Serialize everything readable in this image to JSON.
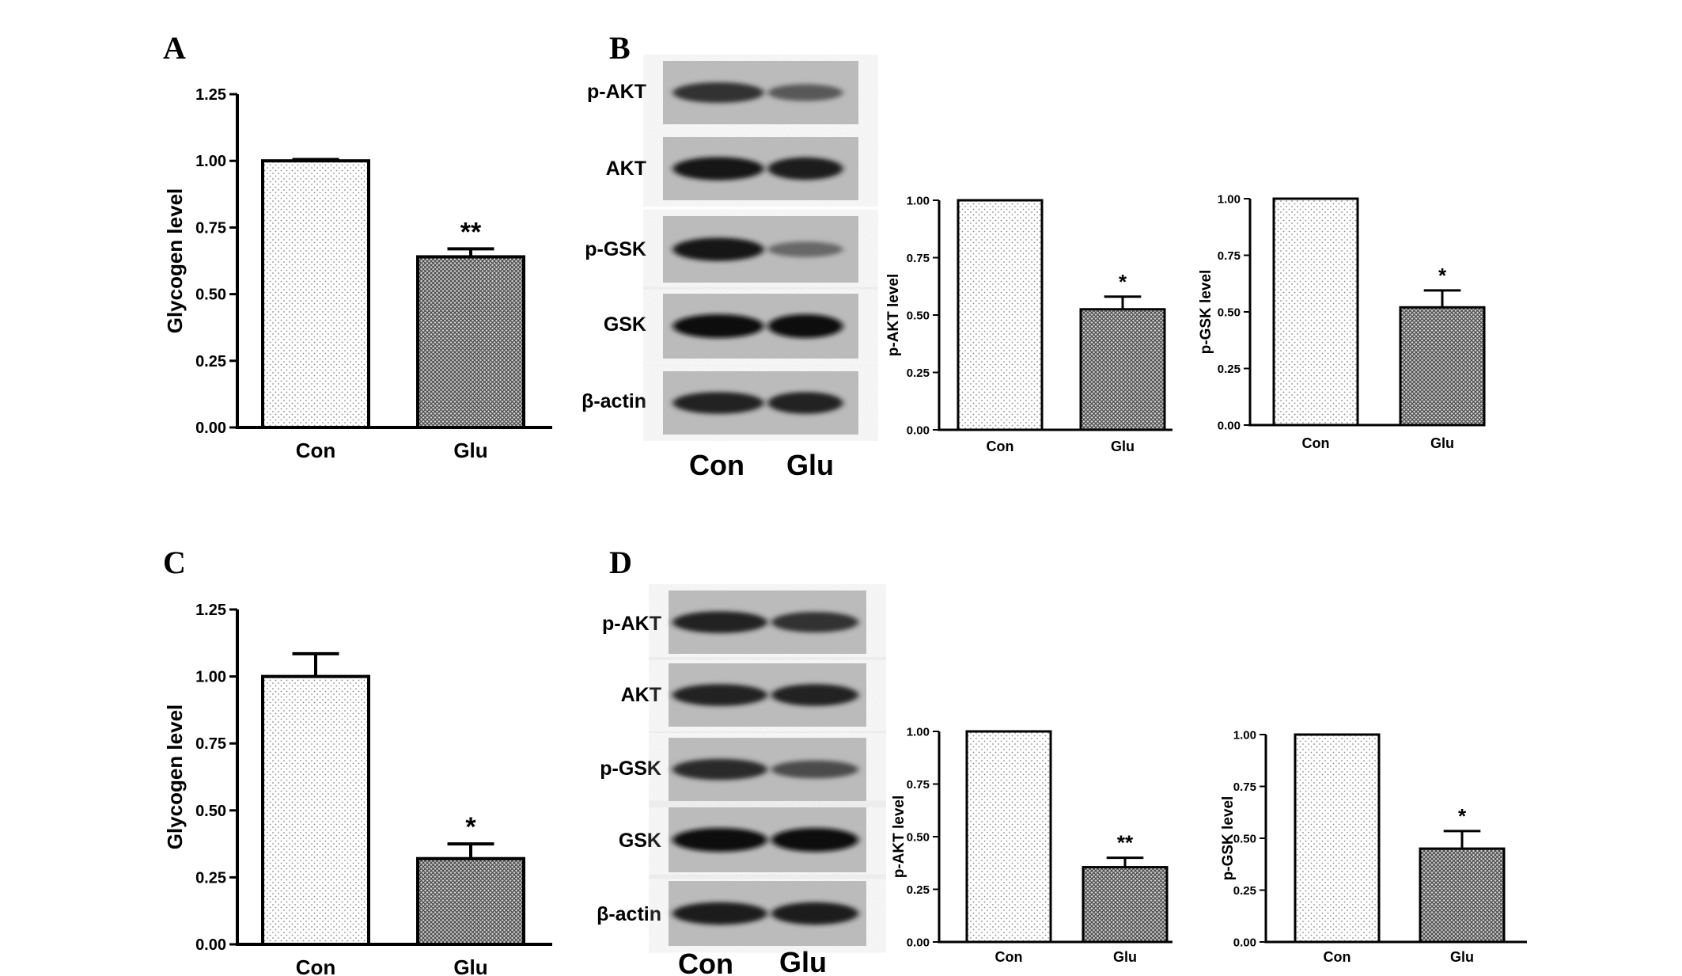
{
  "panels": [
    {
      "id": "A",
      "letter": "A"
    },
    {
      "id": "B",
      "letter": "B"
    },
    {
      "id": "C",
      "letter": "C"
    },
    {
      "id": "D",
      "letter": "D"
    }
  ],
  "blots": [
    {
      "panel": "B",
      "rows": [
        {
          "label": "p-AKT",
          "intensity": [
            0.75,
            0.45
          ]
        },
        {
          "label": "AKT",
          "intensity": [
            0.95,
            0.9
          ]
        },
        {
          "label": "p-GSK",
          "intensity": [
            0.95,
            0.35
          ]
        },
        {
          "label": "GSK",
          "intensity": [
            1.0,
            1.0
          ]
        },
        {
          "label": "β-actin",
          "intensity": [
            0.85,
            0.85
          ]
        }
      ],
      "lanes": [
        "Con",
        "Glu"
      ]
    },
    {
      "panel": "D",
      "rows": [
        {
          "label": "p-AKT",
          "intensity": [
            0.85,
            0.75
          ]
        },
        {
          "label": "AKT",
          "intensity": [
            0.85,
            0.85
          ]
        },
        {
          "label": "p-GSK",
          "intensity": [
            0.8,
            0.55
          ]
        },
        {
          "label": "GSK",
          "intensity": [
            1.0,
            1.0
          ]
        },
        {
          "label": "β-actin",
          "intensity": [
            0.9,
            0.9
          ]
        }
      ],
      "lanes": [
        "Con",
        "Glu"
      ]
    }
  ],
  "chart_data": [
    {
      "panel": "A",
      "type": "bar",
      "categories": [
        "Con",
        "Glu"
      ],
      "values": [
        1.0,
        0.64
      ],
      "errors": [
        0.005,
        0.03
      ],
      "significance": [
        "",
        "**"
      ],
      "ylabel": "Glycogen level",
      "ylim": [
        0,
        1.25
      ],
      "yticks": [
        "0.00",
        "0.25",
        "0.50",
        "0.75",
        "1.00",
        "1.25"
      ]
    },
    {
      "panel": "B",
      "type": "bar",
      "categories": [
        "Con",
        "Glu"
      ],
      "values": [
        1.0,
        0.525
      ],
      "errors": [
        0.0,
        0.055
      ],
      "significance": [
        "",
        "*"
      ],
      "ylabel": "p-AKT level",
      "ylim": [
        0,
        1.0
      ],
      "yticks": [
        "0.00",
        "0.25",
        "0.50",
        "0.75",
        "1.00"
      ]
    },
    {
      "panel": "B",
      "type": "bar",
      "categories": [
        "Con",
        "Glu"
      ],
      "values": [
        1.0,
        0.52
      ],
      "errors": [
        0.0,
        0.075
      ],
      "significance": [
        "",
        "*"
      ],
      "ylabel": "p-GSK level",
      "ylim": [
        0,
        1.0
      ],
      "yticks": [
        "0.00",
        "0.25",
        "0.50",
        "0.75",
        "1.00"
      ]
    },
    {
      "panel": "C",
      "type": "bar",
      "categories": [
        "Con",
        "Glu"
      ],
      "values": [
        1.0,
        0.32
      ],
      "errors": [
        0.085,
        0.055
      ],
      "significance": [
        "",
        "*"
      ],
      "ylabel": "Glycogen level",
      "ylim": [
        0,
        1.25
      ],
      "yticks": [
        "0.00",
        "0.25",
        "0.50",
        "0.75",
        "1.00",
        "1.25"
      ]
    },
    {
      "panel": "D",
      "type": "bar",
      "categories": [
        "Con",
        "Glu"
      ],
      "values": [
        1.0,
        0.355
      ],
      "errors": [
        0.0,
        0.045
      ],
      "significance": [
        "",
        "**"
      ],
      "ylabel": "p-AKT level",
      "ylim": [
        0,
        1.0
      ],
      "yticks": [
        "0.00",
        "0.25",
        "0.50",
        "0.75",
        "1.00"
      ]
    },
    {
      "panel": "D",
      "type": "bar",
      "categories": [
        "Con",
        "Glu"
      ],
      "values": [
        1.0,
        0.45
      ],
      "errors": [
        0.0,
        0.085
      ],
      "significance": [
        "",
        "*"
      ],
      "ylabel": "p-GSK level",
      "ylim": [
        0,
        1.0
      ],
      "yticks": [
        "0.00",
        "0.25",
        "0.50",
        "0.75",
        "1.00"
      ]
    }
  ]
}
